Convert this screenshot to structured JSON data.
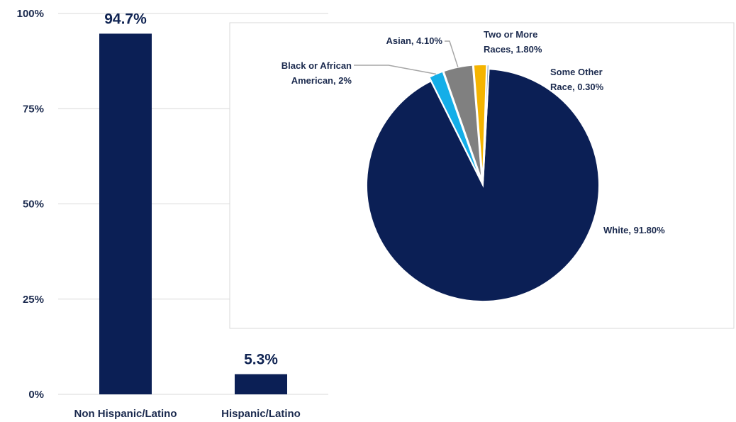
{
  "chart_data": [
    {
      "type": "bar",
      "categories": [
        "Non Hispanic/Latino",
        "Hispanic/Latino"
      ],
      "values": [
        94.7,
        5.3
      ],
      "data_labels": [
        "94.7%",
        "5.3%"
      ],
      "ylim": [
        0,
        100
      ],
      "y_ticks": [
        0,
        25,
        50,
        75,
        100
      ],
      "y_tick_labels": [
        "0%",
        "25%",
        "50%",
        "75%",
        "100%"
      ],
      "grid": true,
      "colors": {
        "bar": "#0b1f55"
      }
    },
    {
      "type": "pie",
      "slices": [
        {
          "name": "White",
          "value": 91.8,
          "label": "White, 91.80%",
          "color": "#0b1f55"
        },
        {
          "name": "Black or African American",
          "value": 2.0,
          "label_lines": [
            "Black or African",
            "American, 2%"
          ],
          "color": "#14aee8"
        },
        {
          "name": "Asian",
          "value": 4.1,
          "label": "Asian, 4.10%",
          "color": "#808080"
        },
        {
          "name": "Two or More Races",
          "value": 1.8,
          "label_lines": [
            "Two or More",
            "Races, 1.80%"
          ],
          "color": "#f5b400"
        },
        {
          "name": "Some Other Race",
          "value": 0.3,
          "label_lines": [
            "Some Other",
            "Race, 0.30%"
          ],
          "color": "#7a9cc0"
        }
      ]
    }
  ]
}
